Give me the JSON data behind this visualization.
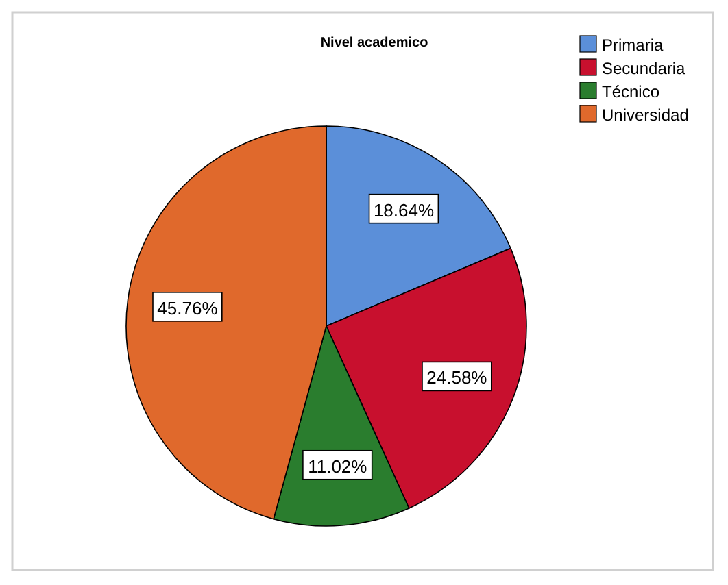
{
  "chart_data": {
    "type": "pie",
    "title": "Nivel academico",
    "categories": [
      "Primaria",
      "Secundaria",
      "Técnico",
      "Universidad"
    ],
    "values": [
      18.64,
      24.58,
      11.02,
      45.76
    ],
    "value_labels": [
      "18.64%",
      "24.58%",
      "11.02%",
      "45.76%"
    ],
    "colors": [
      "#5b8fd9",
      "#c8102e",
      "#2a7d2e",
      "#e0692c"
    ],
    "legend": "top right"
  }
}
